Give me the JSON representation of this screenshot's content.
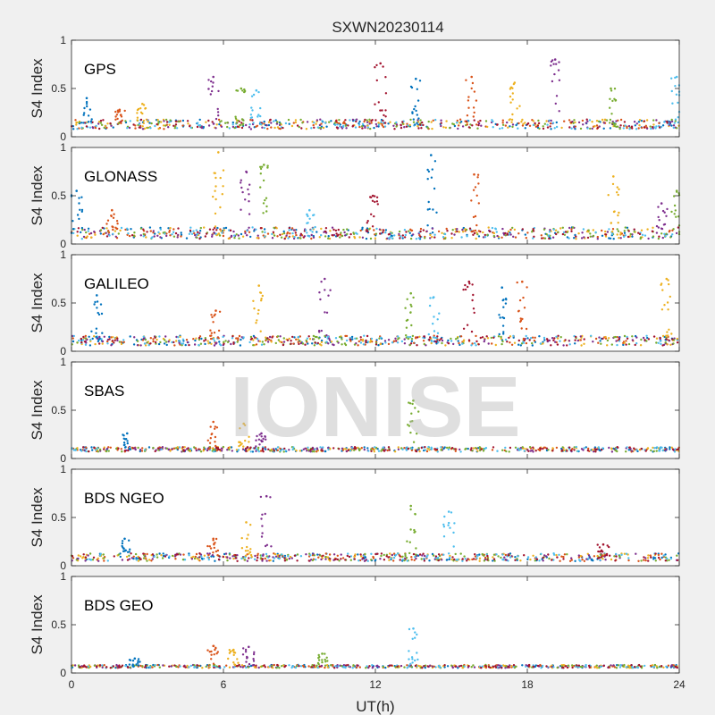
{
  "figure": {
    "title": "SXWN20230114",
    "xlabel": "UT(h)",
    "watermark": "IONISE",
    "background": "#f0f0f0",
    "axes_background": "#ffffff",
    "colors": [
      "#0072BD",
      "#D95319",
      "#EDB120",
      "#7E2F8E",
      "#77AC30",
      "#4DBEEE",
      "#A2142F"
    ]
  },
  "chart_data": [
    {
      "type": "scatter",
      "panel_label": "GPS",
      "ylabel": "S4 Index",
      "xlim": [
        0,
        24
      ],
      "ylim": [
        0,
        1
      ],
      "xticks": [
        0,
        6,
        12,
        18,
        24
      ],
      "yticks": [
        0,
        0.5,
        1
      ],
      "baseline_level": 0.12,
      "noise": 0.05,
      "bursts": [
        {
          "x": 0.6,
          "peak": 0.4
        },
        {
          "x": 1.9,
          "peak": 0.28
        },
        {
          "x": 2.8,
          "peak": 0.34
        },
        {
          "x": 5.6,
          "peak": 0.62
        },
        {
          "x": 6.7,
          "peak": 0.5
        },
        {
          "x": 7.3,
          "peak": 0.48
        },
        {
          "x": 12.2,
          "peak": 0.76
        },
        {
          "x": 13.6,
          "peak": 0.6
        },
        {
          "x": 15.8,
          "peak": 0.62
        },
        {
          "x": 17.5,
          "peak": 0.56
        },
        {
          "x": 19.1,
          "peak": 0.8
        },
        {
          "x": 21.3,
          "peak": 0.5
        },
        {
          "x": 23.9,
          "peak": 0.62
        }
      ]
    },
    {
      "type": "scatter",
      "panel_label": "GLONASS",
      "ylabel": "S4 Index",
      "xlim": [
        0,
        24
      ],
      "ylim": [
        0,
        1
      ],
      "xticks": [
        0,
        6,
        12,
        18,
        24
      ],
      "yticks": [
        0,
        0.5,
        1
      ],
      "baseline_level": 0.1,
      "noise": 0.06,
      "bursts": [
        {
          "x": 0.2,
          "peak": 0.55
        },
        {
          "x": 1.6,
          "peak": 0.35
        },
        {
          "x": 5.8,
          "peak": 0.95
        },
        {
          "x": 6.9,
          "peak": 0.75
        },
        {
          "x": 7.6,
          "peak": 0.82
        },
        {
          "x": 9.4,
          "peak": 0.35
        },
        {
          "x": 11.9,
          "peak": 0.5
        },
        {
          "x": 14.2,
          "peak": 0.92
        },
        {
          "x": 15.9,
          "peak": 0.72
        },
        {
          "x": 21.4,
          "peak": 0.7
        },
        {
          "x": 23.3,
          "peak": 0.42
        },
        {
          "x": 23.9,
          "peak": 0.55
        }
      ]
    },
    {
      "type": "scatter",
      "panel_label": "GALILEO",
      "ylabel": "S4 Index",
      "xlim": [
        0,
        24
      ],
      "ylim": [
        0,
        1
      ],
      "xticks": [
        0,
        6,
        12,
        18,
        24
      ],
      "yticks": [
        0,
        0.5,
        1
      ],
      "baseline_level": 0.1,
      "noise": 0.05,
      "bursts": [
        {
          "x": 1.0,
          "peak": 0.58
        },
        {
          "x": 5.7,
          "peak": 0.42
        },
        {
          "x": 7.4,
          "peak": 0.68
        },
        {
          "x": 10.0,
          "peak": 0.75
        },
        {
          "x": 13.4,
          "peak": 0.6
        },
        {
          "x": 14.3,
          "peak": 0.56
        },
        {
          "x": 15.7,
          "peak": 0.72
        },
        {
          "x": 17.0,
          "peak": 0.66
        },
        {
          "x": 17.8,
          "peak": 0.72
        },
        {
          "x": 23.5,
          "peak": 0.75
        }
      ]
    },
    {
      "type": "scatter",
      "panel_label": "SBAS",
      "ylabel": "S4 Index",
      "xlim": [
        0,
        24
      ],
      "ylim": [
        0,
        1
      ],
      "xticks": [
        0,
        6,
        12,
        18,
        24
      ],
      "yticks": [
        0,
        0.5,
        1
      ],
      "baseline_level": 0.09,
      "noise": 0.025,
      "bursts": [
        {
          "x": 2.2,
          "peak": 0.26
        },
        {
          "x": 5.6,
          "peak": 0.38
        },
        {
          "x": 6.8,
          "peak": 0.36
        },
        {
          "x": 7.5,
          "peak": 0.26
        },
        {
          "x": 13.5,
          "peak": 0.6
        }
      ]
    },
    {
      "type": "scatter",
      "panel_label": "BDS NGEO",
      "ylabel": "S4 Index",
      "xlim": [
        0,
        24
      ],
      "ylim": [
        0,
        1
      ],
      "xticks": [
        0,
        6,
        12,
        18,
        24
      ],
      "yticks": [
        0,
        0.5,
        1
      ],
      "baseline_level": 0.08,
      "noise": 0.04,
      "bursts": [
        {
          "x": 2.1,
          "peak": 0.28
        },
        {
          "x": 5.6,
          "peak": 0.28
        },
        {
          "x": 6.9,
          "peak": 0.45
        },
        {
          "x": 7.7,
          "peak": 0.72
        },
        {
          "x": 13.4,
          "peak": 0.62
        },
        {
          "x": 14.9,
          "peak": 0.56
        },
        {
          "x": 21.0,
          "peak": 0.22
        }
      ]
    },
    {
      "type": "scatter",
      "panel_label": "BDS GEO",
      "ylabel": "S4 Index",
      "xlim": [
        0,
        24
      ],
      "ylim": [
        0,
        1
      ],
      "xticks": [
        0,
        6,
        12,
        18,
        24
      ],
      "yticks": [
        0,
        0.5,
        1
      ],
      "baseline_level": 0.065,
      "noise": 0.015,
      "bursts": [
        {
          "x": 2.5,
          "peak": 0.15
        },
        {
          "x": 5.6,
          "peak": 0.28
        },
        {
          "x": 6.4,
          "peak": 0.24
        },
        {
          "x": 7.0,
          "peak": 0.27
        },
        {
          "x": 9.9,
          "peak": 0.2
        },
        {
          "x": 13.5,
          "peak": 0.46
        }
      ]
    }
  ]
}
